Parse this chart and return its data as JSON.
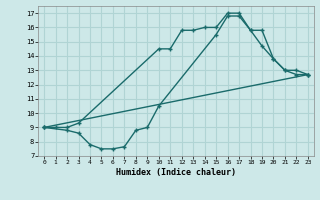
{
  "xlabel": "Humidex (Indice chaleur)",
  "bg_color": "#cde8e8",
  "grid_color": "#b0d4d4",
  "line_color": "#1a6b6b",
  "line1_x": [
    0,
    1,
    2,
    3,
    10,
    11,
    12,
    13,
    14,
    15,
    16,
    17,
    18,
    19,
    20,
    21,
    22,
    23
  ],
  "line1_y": [
    9,
    9,
    9,
    9.3,
    14.5,
    14.5,
    15.8,
    15.8,
    16.0,
    16.0,
    17.0,
    17.0,
    15.8,
    14.7,
    13.8,
    13.0,
    12.7,
    12.7
  ],
  "line2_x": [
    0,
    2,
    3,
    4,
    5,
    6,
    7,
    8,
    9,
    10,
    15,
    16,
    17,
    18,
    19,
    20,
    21,
    22,
    23
  ],
  "line2_y": [
    9.0,
    8.8,
    8.6,
    7.8,
    7.5,
    7.5,
    7.65,
    8.8,
    9.0,
    10.5,
    15.5,
    16.8,
    16.8,
    15.8,
    15.8,
    13.8,
    13.0,
    13.0,
    12.7
  ],
  "line3_x": [
    0,
    23
  ],
  "line3_y": [
    9.0,
    12.7
  ],
  "xlim": [
    -0.5,
    23.5
  ],
  "ylim": [
    7,
    17.5
  ],
  "xticks": [
    0,
    1,
    2,
    3,
    4,
    5,
    6,
    7,
    8,
    9,
    10,
    11,
    12,
    13,
    14,
    15,
    16,
    17,
    18,
    19,
    20,
    21,
    22,
    23
  ],
  "yticks": [
    7,
    8,
    9,
    10,
    11,
    12,
    13,
    14,
    15,
    16,
    17
  ]
}
